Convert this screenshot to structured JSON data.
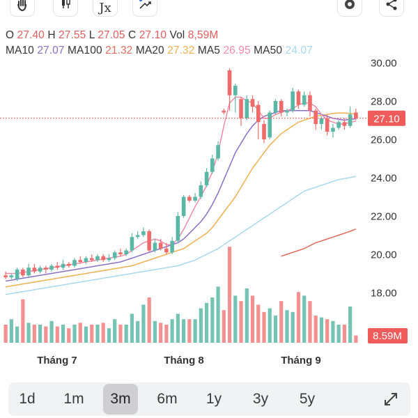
{
  "toolbar": {
    "icons": [
      "hand-icon",
      "candlestick-icon",
      "function-icon",
      "drawing-icon",
      "settings-icon",
      "share-icon"
    ],
    "function_label": "Jx"
  },
  "ohlc": {
    "open_label": "O",
    "open": "27.40",
    "high_label": "H",
    "high": "27.55",
    "low_label": "L",
    "low": "27.05",
    "close_label": "C",
    "close": "27.10",
    "vol_label": "Vol",
    "vol": "8,59M"
  },
  "ma": {
    "ma10_label": "MA10",
    "ma10": "27.07",
    "ma100_label": "MA100",
    "ma100": "21.32",
    "ma20_label": "MA20",
    "ma20": "27.32",
    "ma5_label": "MA5",
    "ma5": "26.95",
    "ma50_label": "MA50",
    "ma50": "24.07"
  },
  "colors": {
    "up": "#5cb8a6",
    "down": "#ef6b6b",
    "ma10": "#8a6fc8",
    "ma100": "#e06c5c",
    "ma20": "#f0b050",
    "ma5": "#f08aa8",
    "ma50": "#a8d8ee",
    "price_tag": "#ef5a5a"
  },
  "chart_data": {
    "type": "candlestick",
    "y_ticks": [
      "30.00",
      "28.00",
      "26.00",
      "24.00",
      "22.00",
      "20.00",
      "18.00"
    ],
    "ylim": [
      17.0,
      30.0
    ],
    "x_labels": [
      "Tháng 7",
      "Tháng 8",
      "Tháng 9"
    ],
    "last_price_label": "27.10",
    "last_price": 27.1,
    "volume_label": "8.59M",
    "candles": [
      {
        "o": 18.9,
        "c": 18.8,
        "h": 19.1,
        "l": 18.7
      },
      {
        "o": 18.8,
        "c": 18.9,
        "h": 19.0,
        "l": 18.7
      },
      {
        "o": 18.7,
        "c": 19.2,
        "h": 19.3,
        "l": 18.6
      },
      {
        "o": 19.2,
        "c": 18.9,
        "h": 19.3,
        "l": 18.8
      },
      {
        "o": 18.9,
        "c": 19.3,
        "h": 19.5,
        "l": 18.8
      },
      {
        "o": 19.3,
        "c": 19.1,
        "h": 19.5,
        "l": 19.0
      },
      {
        "o": 19.1,
        "c": 19.3,
        "h": 19.4,
        "l": 19.0
      },
      {
        "o": 19.3,
        "c": 19.2,
        "h": 19.4,
        "l": 19.0
      },
      {
        "o": 19.2,
        "c": 19.4,
        "h": 19.5,
        "l": 19.1
      },
      {
        "o": 19.4,
        "c": 19.3,
        "h": 19.6,
        "l": 19.2
      },
      {
        "o": 19.3,
        "c": 19.5,
        "h": 19.7,
        "l": 19.2
      },
      {
        "o": 19.5,
        "c": 19.4,
        "h": 19.6,
        "l": 19.3
      },
      {
        "o": 19.4,
        "c": 19.7,
        "h": 19.8,
        "l": 19.3
      },
      {
        "o": 19.7,
        "c": 19.6,
        "h": 19.9,
        "l": 19.5
      },
      {
        "o": 19.6,
        "c": 19.8,
        "h": 19.9,
        "l": 19.5
      },
      {
        "o": 19.8,
        "c": 19.7,
        "h": 20.0,
        "l": 19.6
      },
      {
        "o": 19.7,
        "c": 19.9,
        "h": 20.0,
        "l": 19.6
      },
      {
        "o": 19.9,
        "c": 19.7,
        "h": 20.0,
        "l": 19.6
      },
      {
        "o": 19.7,
        "c": 19.8,
        "h": 20.0,
        "l": 19.6
      },
      {
        "o": 19.8,
        "c": 20.1,
        "h": 20.2,
        "l": 19.7
      },
      {
        "o": 20.1,
        "c": 20.0,
        "h": 20.3,
        "l": 19.9
      },
      {
        "o": 20.0,
        "c": 20.2,
        "h": 20.3,
        "l": 19.9
      },
      {
        "o": 20.2,
        "c": 20.9,
        "h": 21.1,
        "l": 20.1
      },
      {
        "o": 20.9,
        "c": 21.0,
        "h": 21.2,
        "l": 20.8
      },
      {
        "o": 21.0,
        "c": 21.2,
        "h": 21.4,
        "l": 20.9
      },
      {
        "o": 21.2,
        "c": 20.2,
        "h": 21.3,
        "l": 20.1
      },
      {
        "o": 20.2,
        "c": 20.6,
        "h": 20.8,
        "l": 20.1
      },
      {
        "o": 20.6,
        "c": 20.3,
        "h": 20.8,
        "l": 20.2
      },
      {
        "o": 20.3,
        "c": 20.1,
        "h": 20.6,
        "l": 20.0
      },
      {
        "o": 20.1,
        "c": 20.7,
        "h": 20.9,
        "l": 20.0
      },
      {
        "o": 20.7,
        "c": 22.0,
        "h": 22.2,
        "l": 20.6
      },
      {
        "o": 22.0,
        "c": 23.0,
        "h": 23.1,
        "l": 21.9
      },
      {
        "o": 23.0,
        "c": 22.8,
        "h": 23.1,
        "l": 22.7
      },
      {
        "o": 22.8,
        "c": 23.0,
        "h": 23.2,
        "l": 22.7
      },
      {
        "o": 23.0,
        "c": 23.6,
        "h": 23.8,
        "l": 22.9
      },
      {
        "o": 23.6,
        "c": 24.3,
        "h": 24.5,
        "l": 23.5
      },
      {
        "o": 24.3,
        "c": 25.0,
        "h": 25.2,
        "l": 24.2
      },
      {
        "o": 25.0,
        "c": 25.7,
        "h": 25.9,
        "l": 24.9
      },
      {
        "o": 27.5,
        "c": 27.4,
        "h": 27.6,
        "l": 27.3
      },
      {
        "o": 29.6,
        "c": 28.3,
        "h": 29.7,
        "l": 27.5
      },
      {
        "o": 28.3,
        "c": 28.8,
        "h": 28.9,
        "l": 27.4
      },
      {
        "o": 28.1,
        "c": 27.1,
        "h": 28.2,
        "l": 26.7
      },
      {
        "o": 27.1,
        "c": 28.1,
        "h": 28.3,
        "l": 27.0
      },
      {
        "o": 28.1,
        "c": 27.7,
        "h": 28.3,
        "l": 27.4
      },
      {
        "o": 27.8,
        "c": 26.9,
        "h": 28.0,
        "l": 26.0
      },
      {
        "o": 26.8,
        "c": 26.0,
        "h": 27.0,
        "l": 25.8
      },
      {
        "o": 26.1,
        "c": 27.4,
        "h": 27.5,
        "l": 26.0
      },
      {
        "o": 27.4,
        "c": 28.0,
        "h": 28.1,
        "l": 27.3
      },
      {
        "o": 28.0,
        "c": 27.4,
        "h": 28.1,
        "l": 27.2
      },
      {
        "o": 27.4,
        "c": 27.5,
        "h": 27.6,
        "l": 27.2
      },
      {
        "o": 27.5,
        "c": 28.5,
        "h": 28.7,
        "l": 27.4
      },
      {
        "o": 28.5,
        "c": 27.8,
        "h": 28.6,
        "l": 27.6
      },
      {
        "o": 27.8,
        "c": 28.3,
        "h": 28.5,
        "l": 27.7
      },
      {
        "o": 28.3,
        "c": 27.5,
        "h": 28.5,
        "l": 27.2
      },
      {
        "o": 27.5,
        "c": 26.8,
        "h": 27.6,
        "l": 26.5
      },
      {
        "o": 26.8,
        "c": 27.1,
        "h": 27.2,
        "l": 26.5
      },
      {
        "o": 27.1,
        "c": 26.4,
        "h": 27.3,
        "l": 26.2
      },
      {
        "o": 26.4,
        "c": 26.6,
        "h": 26.8,
        "l": 26.1
      },
      {
        "o": 26.6,
        "c": 26.9,
        "h": 27.0,
        "l": 26.5
      },
      {
        "o": 26.9,
        "c": 26.7,
        "h": 27.1,
        "l": 26.5
      },
      {
        "o": 26.7,
        "c": 27.3,
        "h": 27.7,
        "l": 26.6
      },
      {
        "o": 27.4,
        "c": 27.1,
        "h": 27.6,
        "l": 27.0
      }
    ],
    "volumes": [
      1.0,
      1.3,
      0.9,
      2.4,
      1.1,
      1.0,
      1.0,
      0.9,
      1.2,
      0.9,
      1.0,
      0.8,
      1.0,
      1.1,
      0.9,
      1.0,
      1.0,
      1.1,
      0.8,
      1.3,
      1.0,
      1.0,
      1.6,
      1.2,
      2.1,
      2.5,
      1.2,
      1.1,
      1.0,
      1.3,
      1.6,
      1.3,
      1.3,
      1.3,
      1.9,
      2.2,
      2.5,
      3.1,
      1.8,
      5.3,
      2.6,
      2.3,
      3.0,
      2.6,
      2.1,
      1.7,
      1.9,
      1.5,
      2.3,
      1.8,
      1.7,
      2.8,
      2.6,
      2.3,
      1.5,
      1.4,
      1.3,
      1.2,
      1.0,
      1.0,
      2.0,
      0.4
    ],
    "ma5": [
      19.0,
      19.0,
      19.0,
      19.05,
      19.1,
      19.15,
      19.2,
      19.25,
      19.3,
      19.35,
      19.4,
      19.45,
      19.5,
      19.55,
      19.6,
      19.65,
      19.7,
      19.75,
      19.8,
      19.85,
      19.9,
      20.0,
      20.2,
      20.4,
      20.6,
      20.7,
      20.8,
      20.7,
      20.5,
      20.5,
      20.8,
      21.3,
      21.9,
      22.5,
      23.0,
      23.6,
      24.3,
      25.3,
      26.7,
      27.9,
      28.2,
      28.2,
      28.0,
      27.9,
      27.5,
      27.1,
      27.1,
      27.3,
      27.4,
      27.5,
      27.6,
      27.8,
      27.9,
      27.9,
      27.7,
      27.3,
      27.0,
      26.9,
      26.8,
      26.8,
      26.9,
      26.95
    ],
    "ma10": [
      18.6,
      18.65,
      18.7,
      18.75,
      18.8,
      18.85,
      18.9,
      18.95,
      19.0,
      19.05,
      19.1,
      19.15,
      19.2,
      19.25,
      19.3,
      19.35,
      19.4,
      19.45,
      19.5,
      19.55,
      19.6,
      19.7,
      19.8,
      19.9,
      20.0,
      20.1,
      20.2,
      20.3,
      20.4,
      20.5,
      20.6,
      20.8,
      21.1,
      21.4,
      21.7,
      22.1,
      22.6,
      23.2,
      23.9,
      24.6,
      25.3,
      25.8,
      26.3,
      26.7,
      27.0,
      27.2,
      27.3,
      27.4,
      27.5,
      27.5,
      27.5,
      27.5,
      27.5,
      27.5,
      27.4,
      27.3,
      27.2,
      27.1,
      27.05,
      27.0,
      27.05,
      27.07
    ],
    "ma20": [
      18.3,
      18.35,
      18.4,
      18.45,
      18.5,
      18.55,
      18.6,
      18.65,
      18.7,
      18.75,
      18.8,
      18.85,
      18.9,
      18.95,
      19.0,
      19.05,
      19.1,
      19.15,
      19.2,
      19.25,
      19.3,
      19.35,
      19.4,
      19.5,
      19.6,
      19.7,
      19.8,
      19.9,
      20.0,
      20.1,
      20.2,
      20.3,
      20.5,
      20.7,
      20.9,
      21.1,
      21.4,
      21.8,
      22.2,
      22.6,
      23.0,
      23.5,
      24.0,
      24.5,
      24.9,
      25.3,
      25.7,
      26.0,
      26.3,
      26.5,
      26.7,
      26.9,
      27.0,
      27.1,
      27.2,
      27.25,
      27.3,
      27.35,
      27.38,
      27.38,
      27.35,
      27.32
    ],
    "ma50": [
      17.9,
      17.95,
      18.0,
      18.05,
      18.1,
      18.15,
      18.2,
      18.25,
      18.3,
      18.35,
      18.4,
      18.45,
      18.5,
      18.55,
      18.6,
      18.65,
      18.7,
      18.75,
      18.8,
      18.85,
      18.9,
      18.95,
      19.0,
      19.05,
      19.1,
      19.15,
      19.2,
      19.25,
      19.3,
      19.35,
      19.4,
      19.5,
      19.6,
      19.7,
      19.85,
      20.0,
      20.15,
      20.3,
      20.5,
      20.7,
      20.9,
      21.1,
      21.3,
      21.5,
      21.7,
      21.9,
      22.1,
      22.3,
      22.5,
      22.7,
      22.9,
      23.1,
      23.3,
      23.4,
      23.5,
      23.6,
      23.7,
      23.8,
      23.9,
      23.95,
      24.0,
      24.07
    ],
    "ma100": [
      null,
      null,
      null,
      null,
      null,
      null,
      null,
      null,
      null,
      null,
      null,
      null,
      null,
      null,
      null,
      null,
      null,
      null,
      null,
      null,
      null,
      null,
      null,
      null,
      null,
      null,
      null,
      null,
      null,
      null,
      null,
      null,
      null,
      null,
      null,
      null,
      null,
      null,
      null,
      null,
      null,
      null,
      null,
      null,
      null,
      null,
      null,
      null,
      19.9,
      20.0,
      20.1,
      20.2,
      20.3,
      20.45,
      20.6,
      20.7,
      20.8,
      20.9,
      21.0,
      21.1,
      21.2,
      21.32
    ]
  },
  "periods": [
    {
      "label": "1d",
      "active": false
    },
    {
      "label": "1m",
      "active": false
    },
    {
      "label": "3m",
      "active": true
    },
    {
      "label": "6m",
      "active": false
    },
    {
      "label": "1y",
      "active": false
    },
    {
      "label": "3y",
      "active": false
    },
    {
      "label": "5y",
      "active": false
    }
  ],
  "expand_icon": "expand-icon"
}
